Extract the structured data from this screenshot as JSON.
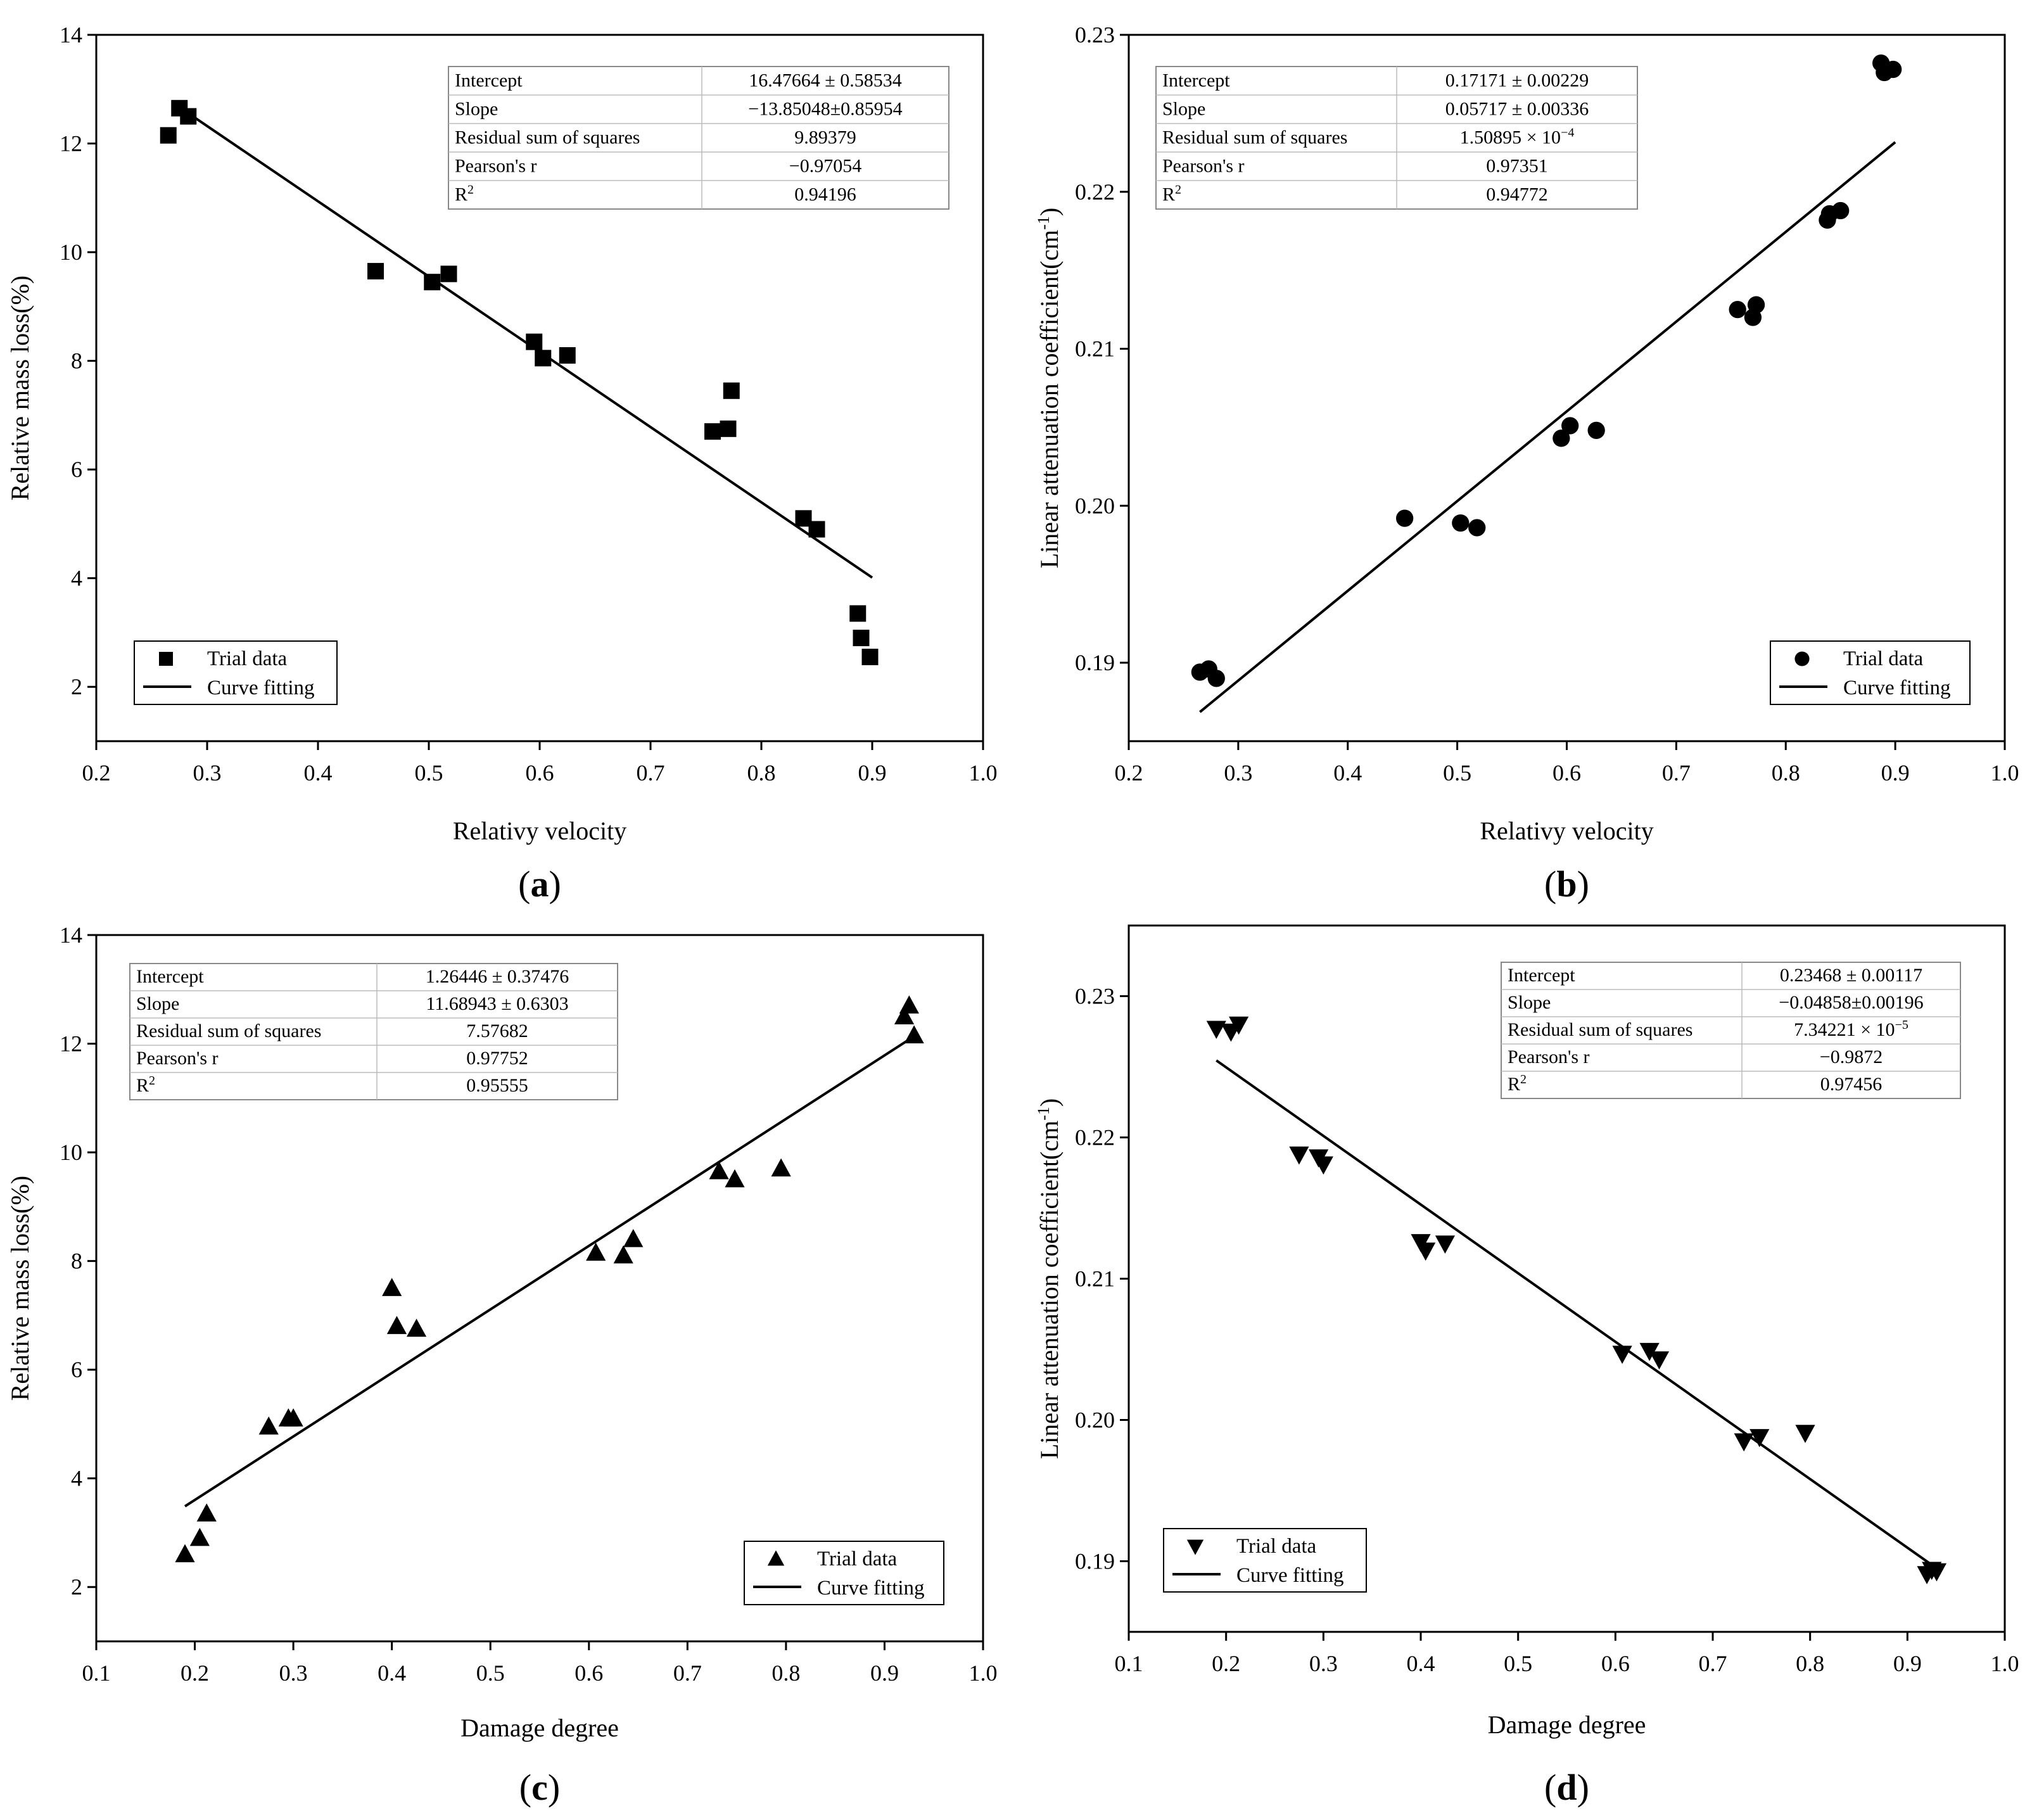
{
  "chart_data": [
    {
      "id": "a",
      "type": "scatter",
      "panel_label": "a",
      "xlabel": "Relativy velocity",
      "ylabel": "Relative mass loss(%)",
      "xlim": [
        0.2,
        1.0
      ],
      "ylim": [
        1.0,
        14.0
      ],
      "xticks": [
        0.2,
        0.3,
        0.4,
        0.5,
        0.6,
        0.7,
        0.8,
        0.9,
        1.0
      ],
      "yticks": [
        2,
        4,
        6,
        8,
        10,
        12,
        14
      ],
      "x_tick_labels": [
        "0.2",
        "0.3",
        "0.4",
        "0.5",
        "0.6",
        "0.7",
        "0.8",
        "0.9",
        "1.0"
      ],
      "y_tick_labels": [
        "2",
        "4",
        "6",
        "8",
        "10",
        "12",
        "14"
      ],
      "marker": "square",
      "points": [
        [
          0.265,
          12.15
        ],
        [
          0.275,
          12.65
        ],
        [
          0.283,
          12.5
        ],
        [
          0.452,
          9.65
        ],
        [
          0.503,
          9.45
        ],
        [
          0.518,
          9.6
        ],
        [
          0.595,
          8.35
        ],
        [
          0.603,
          8.05
        ],
        [
          0.625,
          8.1
        ],
        [
          0.756,
          6.7
        ],
        [
          0.77,
          6.75
        ],
        [
          0.773,
          7.45
        ],
        [
          0.838,
          5.1
        ],
        [
          0.85,
          4.9
        ],
        [
          0.887,
          3.35
        ],
        [
          0.89,
          2.9
        ],
        [
          0.898,
          2.55
        ]
      ],
      "fit": {
        "intercept": 16.47664,
        "slope": -13.85048,
        "x_range": [
          0.27,
          0.9
        ]
      },
      "legend": {
        "position": "bottom-left",
        "entries": [
          "Trial data",
          "Curve fitting"
        ]
      },
      "stats_box": {
        "position": "top-right",
        "rows": [
          {
            "label": "Intercept",
            "value": "16.47664 ± 0.58534"
          },
          {
            "label": "Slope",
            "value": "−13.85048±0.85954"
          },
          {
            "label": "Residual sum of squares",
            "value": "9.89379"
          },
          {
            "label": "Pearson's r",
            "value": "−0.97054"
          },
          {
            "label": "R",
            "sup": "2",
            "value": "0.94196"
          }
        ]
      }
    },
    {
      "id": "b",
      "type": "scatter",
      "panel_label": "b",
      "xlabel": "Relativy velocity",
      "ylabel": "Linear attenuation coefficient(cm",
      "ylabel_sup": "-1",
      "ylabel_end": ")",
      "xlim": [
        0.2,
        1.0
      ],
      "ylim": [
        0.185,
        0.23
      ],
      "xticks": [
        0.2,
        0.3,
        0.4,
        0.5,
        0.6,
        0.7,
        0.8,
        0.9,
        1.0
      ],
      "yticks": [
        0.19,
        0.2,
        0.21,
        0.22,
        0.23
      ],
      "x_tick_labels": [
        "0.2",
        "0.3",
        "0.4",
        "0.5",
        "0.6",
        "0.7",
        "0.8",
        "0.9",
        "1.0"
      ],
      "y_tick_labels": [
        "0.19",
        "0.20",
        "0.21",
        "0.22",
        "0.23"
      ],
      "marker": "circle",
      "points": [
        [
          0.265,
          0.1894
        ],
        [
          0.273,
          0.1896
        ],
        [
          0.28,
          0.189
        ],
        [
          0.452,
          0.1992
        ],
        [
          0.503,
          0.1989
        ],
        [
          0.518,
          0.1986
        ],
        [
          0.595,
          0.2043
        ],
        [
          0.603,
          0.2051
        ],
        [
          0.627,
          0.2048
        ],
        [
          0.756,
          0.2125
        ],
        [
          0.77,
          0.212
        ],
        [
          0.773,
          0.2128
        ],
        [
          0.838,
          0.2182
        ],
        [
          0.84,
          0.2186
        ],
        [
          0.85,
          0.2188
        ],
        [
          0.887,
          0.2282
        ],
        [
          0.89,
          0.2276
        ],
        [
          0.898,
          0.2278
        ]
      ],
      "fit": {
        "intercept": 0.17171,
        "slope": 0.05717,
        "x_range": [
          0.265,
          0.9
        ]
      },
      "legend": {
        "position": "bottom-right",
        "entries": [
          "Trial data",
          "Curve fitting"
        ]
      },
      "stats_box": {
        "position": "top-left",
        "rows": [
          {
            "label": "Intercept",
            "value": "0.17171 ± 0.00229"
          },
          {
            "label": "Slope",
            "value": "0.05717 ± 0.00336"
          },
          {
            "label": "Residual sum of squares",
            "value": "1.50895 × 10",
            "value_sup": "−4"
          },
          {
            "label": "Pearson's r",
            "value": "0.97351"
          },
          {
            "label": "R",
            "sup": "2",
            "value": "0.94772"
          }
        ]
      }
    },
    {
      "id": "c",
      "type": "scatter",
      "panel_label": "c",
      "xlabel": "Damage degree",
      "ylabel": "Relative mass loss(%)",
      "xlim": [
        0.1,
        1.0
      ],
      "ylim": [
        1.0,
        14.0
      ],
      "xticks": [
        0.1,
        0.2,
        0.3,
        0.4,
        0.5,
        0.6,
        0.7,
        0.8,
        0.9,
        1.0
      ],
      "yticks": [
        2,
        4,
        6,
        8,
        10,
        12,
        14
      ],
      "x_tick_labels": [
        "0.1",
        "0.2",
        "0.3",
        "0.4",
        "0.5",
        "0.6",
        "0.7",
        "0.8",
        "0.9",
        "1.0"
      ],
      "y_tick_labels": [
        "2",
        "4",
        "6",
        "8",
        "10",
        "12",
        "14"
      ],
      "marker": "triangle-up",
      "points": [
        [
          0.19,
          2.6
        ],
        [
          0.205,
          2.9
        ],
        [
          0.212,
          3.35
        ],
        [
          0.275,
          4.95
        ],
        [
          0.295,
          5.1
        ],
        [
          0.3,
          5.1
        ],
        [
          0.4,
          7.5
        ],
        [
          0.405,
          6.8
        ],
        [
          0.425,
          6.75
        ],
        [
          0.607,
          8.15
        ],
        [
          0.635,
          8.1
        ],
        [
          0.645,
          8.4
        ],
        [
          0.732,
          9.65
        ],
        [
          0.748,
          9.5
        ],
        [
          0.795,
          9.7
        ],
        [
          0.92,
          12.5
        ],
        [
          0.925,
          12.7
        ],
        [
          0.93,
          12.15
        ]
      ],
      "fit": {
        "intercept": 1.26446,
        "slope": 11.68943,
        "x_range": [
          0.19,
          0.93
        ]
      },
      "legend": {
        "position": "bottom-right",
        "entries": [
          "Trial data",
          "Curve fitting"
        ]
      },
      "stats_box": {
        "position": "top-left",
        "rows": [
          {
            "label": "Intercept",
            "value": "1.26446 ± 0.37476"
          },
          {
            "label": "Slope",
            "value": "11.68943 ± 0.6303"
          },
          {
            "label": "Residual sum of squares",
            "value": "7.57682"
          },
          {
            "label": "Pearson's r",
            "value": "0.97752"
          },
          {
            "label": "R",
            "sup": "2",
            "value": "0.95555"
          }
        ]
      }
    },
    {
      "id": "d",
      "type": "scatter",
      "panel_label": "d",
      "xlabel": "Damage degree",
      "ylabel": "Linear attenuation coefficient(cm",
      "ylabel_sup": "-1",
      "ylabel_end": ")",
      "xlim": [
        0.1,
        1.0
      ],
      "ylim": [
        0.185,
        0.235
      ],
      "xticks": [
        0.1,
        0.2,
        0.3,
        0.4,
        0.5,
        0.6,
        0.7,
        0.8,
        0.9,
        1.0
      ],
      "yticks": [
        0.19,
        0.2,
        0.21,
        0.22,
        0.23
      ],
      "x_tick_labels": [
        "0.1",
        "0.2",
        "0.3",
        "0.4",
        "0.5",
        "0.6",
        "0.7",
        "0.8",
        "0.9",
        "1.0"
      ],
      "y_tick_labels": [
        "0.19",
        "0.20",
        "0.21",
        "0.22",
        "0.23"
      ],
      "marker": "triangle-down",
      "points": [
        [
          0.19,
          0.2277
        ],
        [
          0.205,
          0.2275
        ],
        [
          0.213,
          0.228
        ],
        [
          0.275,
          0.2188
        ],
        [
          0.295,
          0.2186
        ],
        [
          0.3,
          0.2181
        ],
        [
          0.4,
          0.2126
        ],
        [
          0.405,
          0.212
        ],
        [
          0.425,
          0.2125
        ],
        [
          0.607,
          0.2047
        ],
        [
          0.635,
          0.2049
        ],
        [
          0.645,
          0.2043
        ],
        [
          0.732,
          0.1985
        ],
        [
          0.748,
          0.1988
        ],
        [
          0.795,
          0.1991
        ],
        [
          0.92,
          0.1891
        ],
        [
          0.925,
          0.1894
        ],
        [
          0.93,
          0.1893
        ]
      ],
      "fit": {
        "intercept": 0.23468,
        "slope": -0.04858,
        "x_range": [
          0.19,
          0.925
        ]
      },
      "legend": {
        "position": "bottom-left",
        "entries": [
          "Trial data",
          "Curve fitting"
        ]
      },
      "stats_box": {
        "position": "top-right",
        "rows": [
          {
            "label": "Intercept",
            "value": "0.23468 ± 0.00117"
          },
          {
            "label": "Slope",
            "value": "−0.04858±0.00196"
          },
          {
            "label": "Residual sum of squares",
            "value": "7.34221 × 10",
            "value_sup": "−5"
          },
          {
            "label": "Pearson's r",
            "value": "−0.9872"
          },
          {
            "label": "R",
            "sup": "2",
            "value": "0.97456"
          }
        ]
      }
    }
  ]
}
